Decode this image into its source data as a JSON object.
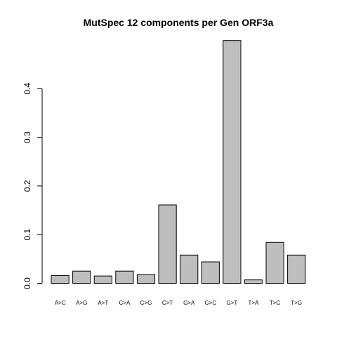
{
  "chart_data": {
    "type": "bar",
    "title": "MutSpec 12 components per Gen ORF3a",
    "xlabel": "",
    "ylabel": "",
    "categories": [
      "A>C",
      "A>G",
      "A>T",
      "C>A",
      "C>G",
      "C>T",
      "G>A",
      "G>C",
      "G>T",
      "T>A",
      "T>C",
      "T>G"
    ],
    "values": [
      0.016,
      0.025,
      0.015,
      0.025,
      0.018,
      0.161,
      0.058,
      0.044,
      0.499,
      0.007,
      0.084,
      0.058
    ],
    "ylim": [
      0,
      0.5
    ],
    "yticks": [
      0.0,
      0.1,
      0.2,
      0.3,
      0.4
    ],
    "ytick_labels": [
      "0.0",
      "0.1",
      "0.2",
      "0.3",
      "0.4"
    ],
    "grid": false,
    "bar_color": "#bebebe",
    "edge_color": "#000000"
  }
}
